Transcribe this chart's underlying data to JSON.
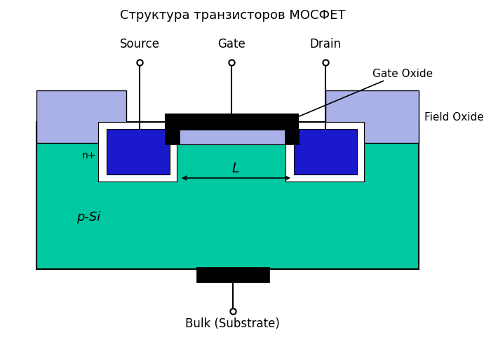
{
  "title": "Структура транзисторов МОСФЕТ",
  "title_fontsize": 13,
  "background_color": "#ffffff",
  "colors": {
    "substrate": "#00c8a0",
    "field_oxide": "#aab0e8",
    "gate_oxide_strip": "#aab0e8",
    "gate_metal": "#000000",
    "black": "#000000",
    "white": "#ffffff",
    "n_region": "#1a1acc",
    "oxide_surround": "#ffffff"
  },
  "labels": {
    "source": "Source",
    "gate": "Gate",
    "drain": "Drain",
    "gate_oxide": "Gate Oxide",
    "field_oxide": "Field Oxide",
    "n_plus": "n+",
    "p_si": "p-Si",
    "bulk": "Bulk (Substrate)",
    "L": "L"
  }
}
